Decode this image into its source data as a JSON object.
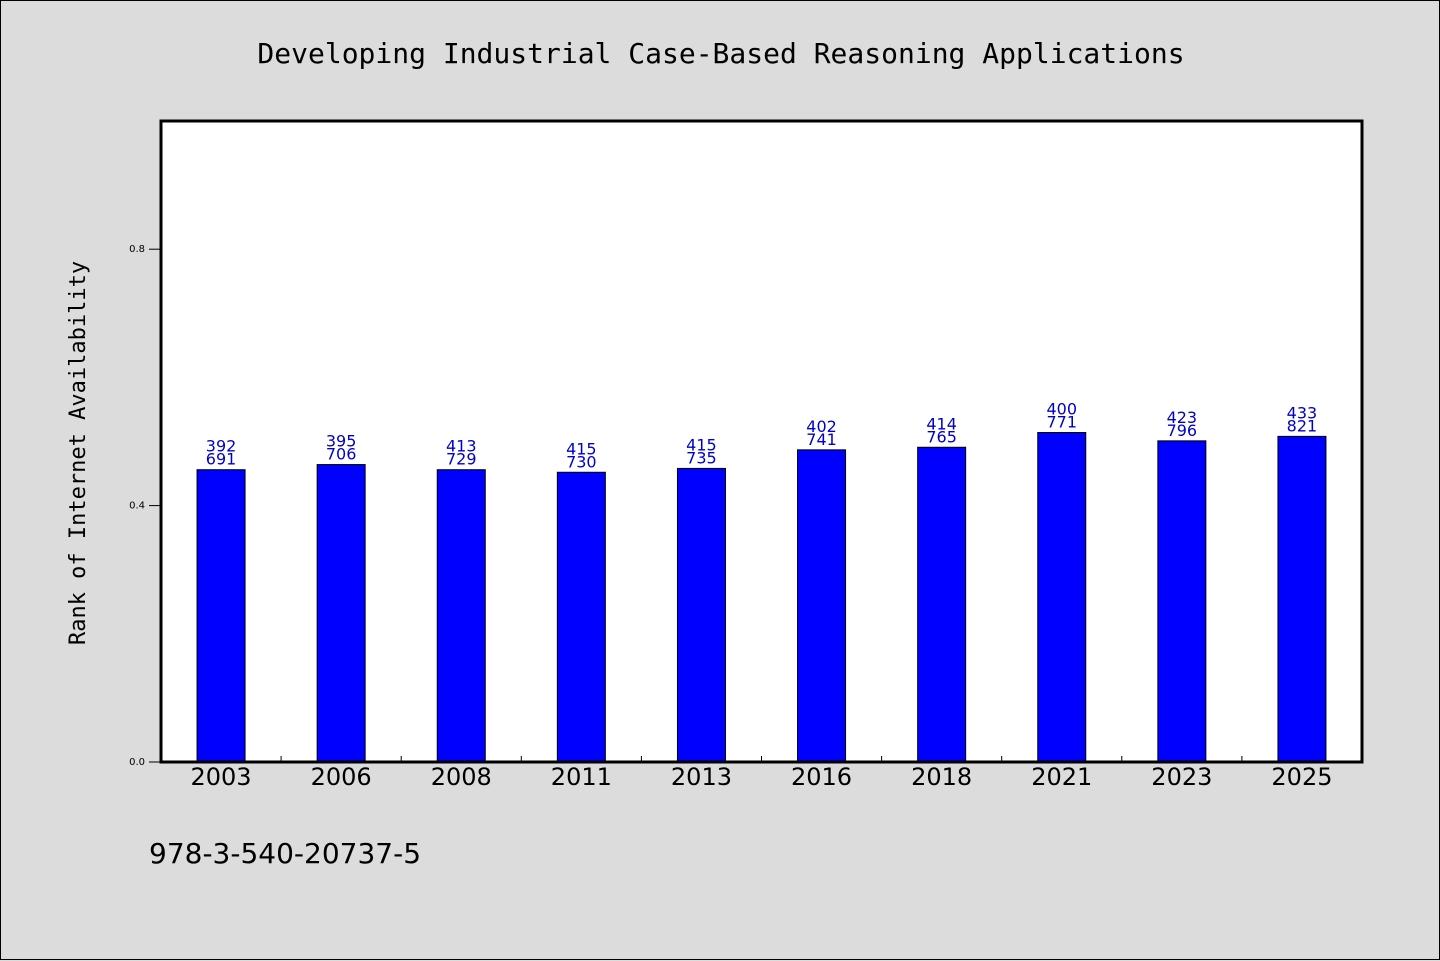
{
  "chart_data": {
    "type": "bar",
    "title": "Developing Industrial Case-Based Reasoning Applications",
    "ylabel": "Rank of Internet Availability",
    "xlabel": "",
    "ylim": [
      0,
      1.0
    ],
    "yticks": [
      "0.0",
      "0.4",
      "0.8"
    ],
    "yticks_values": [
      0.0,
      0.4,
      0.8
    ],
    "grid": false,
    "bar_color": "#0000ff",
    "label_color": "#0000cc",
    "categories": [
      "2003",
      "2006",
      "2008",
      "2011",
      "2013",
      "2016",
      "2018",
      "2021",
      "2023",
      "2025"
    ],
    "values": [
      0.456,
      0.464,
      0.456,
      0.452,
      0.458,
      0.487,
      0.491,
      0.514,
      0.501,
      0.508
    ],
    "labels_top": [
      "392",
      "395",
      "413",
      "415",
      "415",
      "402",
      "414",
      "400",
      "423",
      "433"
    ],
    "labels_bottom": [
      "691",
      "706",
      "729",
      "730",
      "735",
      "741",
      "765",
      "771",
      "796",
      "821"
    ]
  },
  "footnote": "978-3-540-20737-5"
}
